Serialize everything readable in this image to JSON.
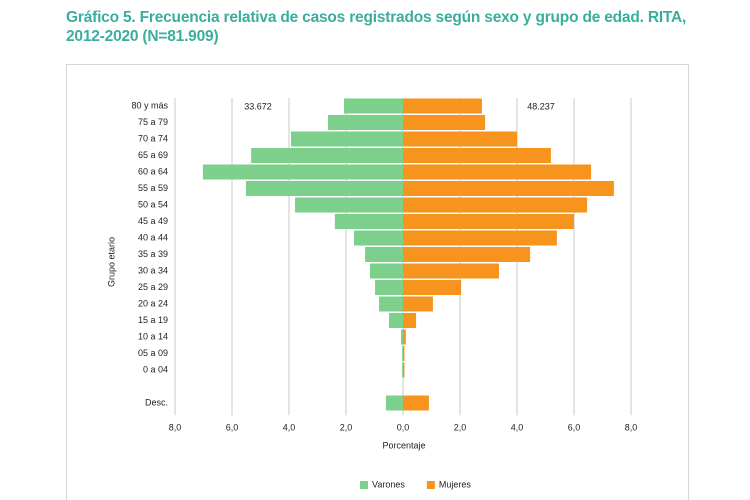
{
  "chart_data": {
    "type": "pyramid",
    "title": "Gráfico 5. Frecuencia relativa de casos registrados según sexo y grupo de edad. RITA, 2012-2020 (N=81.909)",
    "xlabel": "Porcentaje",
    "ylabel": "Grupo etario",
    "annotations": [
      "33.672",
      "48.237"
    ],
    "categories": [
      "80 y más",
      "75 a 79",
      "70 a 74",
      "65 a 69",
      "60 a 64",
      "55 a 59",
      "50 a 54",
      "45 a 49",
      "40 a 44",
      "35 a 39",
      "30 a 34",
      "25 a 29",
      "20 a 24",
      "15 a 19",
      "10 a 14",
      "05 a 09",
      "0 a 04",
      null,
      "Desc."
    ],
    "series": [
      {
        "name": "Varones",
        "color": "#7dcf8c",
        "values": [
          -2.07,
          -2.63,
          -3.93,
          -5.33,
          -7.02,
          -5.51,
          -3.79,
          -2.39,
          -1.72,
          -1.33,
          -1.16,
          -0.98,
          -0.84,
          -0.49,
          -0.07,
          -0.03,
          -0.03,
          null,
          -0.6
        ]
      },
      {
        "name": "Mujeres",
        "color": "#f7941d",
        "values": [
          2.77,
          2.88,
          4.0,
          5.19,
          6.6,
          7.4,
          6.46,
          6.0,
          5.4,
          4.46,
          3.37,
          2.04,
          1.05,
          0.46,
          0.1,
          0.05,
          0.05,
          null,
          0.91
        ]
      }
    ],
    "xlim": [
      -8,
      8
    ],
    "xticks": [
      {
        "value": -8,
        "label": "8,0"
      },
      {
        "value": -6,
        "label": "6,0"
      },
      {
        "value": -4,
        "label": "4,0"
      },
      {
        "value": -2,
        "label": "2,0"
      },
      {
        "value": 0,
        "label": "0,0"
      },
      {
        "value": 2,
        "label": "2,0"
      },
      {
        "value": 4,
        "label": "4,0"
      },
      {
        "value": 6,
        "label": "6,0"
      },
      {
        "value": 8,
        "label": "8,0"
      }
    ],
    "grid": true,
    "legend": "bottom"
  }
}
